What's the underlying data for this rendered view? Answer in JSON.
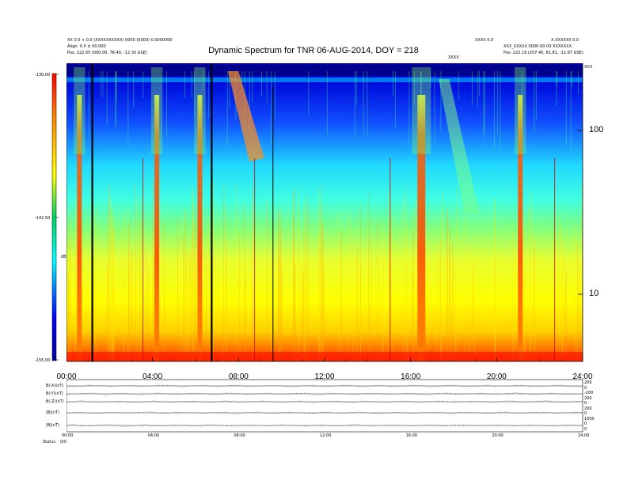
{
  "header": {
    "title": "Dynamic Spectrum for TNR 06-AUG-2014, DOY = 218",
    "left_line1": "XX 0.0 + 0.0 (XXXXXXXXXX) 0000 (0000) 0.0000000",
    "left_line2": "Align: 0.0 ± 00.000",
    "left_line3": "Pos:    222.05 (000.00, 78.40, -12.30 GSE)",
    "right_top_a": "XXXX 0.0",
    "right_top_b": "X.XXXXXX 0.0",
    "right_line2": "XXX_XXXXX 0000-00-00 XXXXXXX",
    "right_line3": "Pos:    222.19 (207.40, 81.81, -11.67 GSE)",
    "mid_label": "XXXX",
    "corner_label": "XXX"
  },
  "colorbar": {
    "top_label": "-130.00",
    "mid_label": "-142.50",
    "bottom_label": "-155.00",
    "side_label": "dB",
    "colors": [
      "#ff0000",
      "#ff8000",
      "#ffff00",
      "#00c000",
      "#00ffff",
      "#0000ff",
      "#000080"
    ]
  },
  "chart_data": {
    "type": "heatmap",
    "title": "Dynamic Spectrum for TNR 06-AUG-2014, DOY = 218",
    "x_tick_labels": [
      "00:00",
      "04:00",
      "08:00",
      "12:00",
      "16:00",
      "20:00",
      "24:00"
    ],
    "x_range_hours": [
      0,
      24
    ],
    "y_tick_labels": [
      "100",
      "10"
    ],
    "y_scale": "log",
    "colorbar_range": [
      -155.0,
      -130.0
    ],
    "colorbar_ticks": [
      -130.0,
      -142.5,
      -155.0
    ],
    "features": {
      "black_data_gaps_hours": [
        1.2,
        6.75
      ],
      "red_bursts_hours": [
        0.6,
        4.2,
        6.2,
        16.5,
        21.1
      ]
    }
  },
  "bottom_panel": {
    "row_labels": [
      "B(-X)(nT)",
      "B(-Y)(nT)",
      "B(-Z)(nT)",
      "|B|(nT)",
      "|B|(nT)"
    ],
    "right_labels": [
      "200",
      "0",
      "-200",
      "200",
      "0",
      "200",
      "0",
      "1000",
      "0",
      "0"
    ],
    "x_labels": [
      "00:00",
      "04:00",
      "08:00",
      "12:00",
      "16:00",
      "20:00",
      "24:00"
    ],
    "status_label": "Status",
    "status_value": "0/0"
  }
}
